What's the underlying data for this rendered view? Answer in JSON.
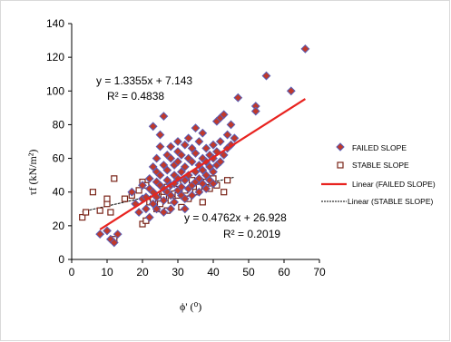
{
  "chart_data": {
    "type": "scatter",
    "title": "",
    "xlabel": "ϕ' (⁰)",
    "ylabel": "τf (kN/m²)",
    "xlim": [
      0,
      70
    ],
    "ylim": [
      0,
      140
    ],
    "x_ticks": [
      "0",
      "10",
      "20",
      "30",
      "40",
      "50",
      "60",
      "70"
    ],
    "y_ticks": [
      "0",
      "20",
      "40",
      "60",
      "80",
      "100",
      "120",
      "140"
    ],
    "grid": false,
    "legend_position": "right",
    "series": [
      {
        "name": "FAILED SLOPE",
        "marker": "diamond",
        "color": "#c0392b",
        "edge_color": "#5b5fb5",
        "points": [
          [
            8,
            15
          ],
          [
            10,
            17
          ],
          [
            11,
            12
          ],
          [
            12,
            10
          ],
          [
            13,
            15
          ],
          [
            17,
            40
          ],
          [
            18,
            33
          ],
          [
            19,
            28
          ],
          [
            20,
            36
          ],
          [
            20,
            44
          ],
          [
            21,
            30
          ],
          [
            21,
            37
          ],
          [
            22,
            42
          ],
          [
            22,
            48
          ],
          [
            22,
            25
          ],
          [
            23,
            55
          ],
          [
            23,
            79
          ],
          [
            23,
            33
          ],
          [
            23,
            40
          ],
          [
            24,
            46
          ],
          [
            24,
            52
          ],
          [
            24,
            60
          ],
          [
            24,
            30
          ],
          [
            24,
            37
          ],
          [
            25,
            44
          ],
          [
            25,
            50
          ],
          [
            25,
            67
          ],
          [
            25,
            74
          ],
          [
            26,
            85
          ],
          [
            26,
            42
          ],
          [
            26,
            56
          ],
          [
            26,
            35
          ],
          [
            26,
            28
          ],
          [
            27,
            47
          ],
          [
            27,
            62
          ],
          [
            27,
            40
          ],
          [
            27,
            53
          ],
          [
            28,
            44
          ],
          [
            28,
            60
          ],
          [
            28,
            67
          ],
          [
            28,
            30
          ],
          [
            28,
            38
          ],
          [
            29,
            50
          ],
          [
            29,
            56
          ],
          [
            29,
            45
          ],
          [
            29,
            34
          ],
          [
            30,
            41
          ],
          [
            30,
            58
          ],
          [
            30,
            64
          ],
          [
            30,
            48
          ],
          [
            30,
            70
          ],
          [
            31,
            38
          ],
          [
            31,
            52
          ],
          [
            31,
            62
          ],
          [
            31,
            43
          ],
          [
            32,
            55
          ],
          [
            32,
            47
          ],
          [
            32,
            36
          ],
          [
            32,
            68
          ],
          [
            32,
            30
          ],
          [
            33,
            60
          ],
          [
            33,
            50
          ],
          [
            33,
            42
          ],
          [
            33,
            72
          ],
          [
            34,
            44
          ],
          [
            34,
            58
          ],
          [
            34,
            66
          ],
          [
            34,
            38
          ],
          [
            35,
            78
          ],
          [
            35,
            52
          ],
          [
            35,
            46
          ],
          [
            35,
            63
          ],
          [
            36,
            56
          ],
          [
            36,
            40
          ],
          [
            36,
            70
          ],
          [
            36,
            48
          ],
          [
            37,
            60
          ],
          [
            37,
            45
          ],
          [
            37,
            75
          ],
          [
            37,
            53
          ],
          [
            38,
            50
          ],
          [
            38,
            66
          ],
          [
            38,
            42
          ],
          [
            38,
            58
          ],
          [
            39,
            62
          ],
          [
            39,
            47
          ],
          [
            39,
            55
          ],
          [
            40,
            68
          ],
          [
            40,
            52
          ],
          [
            40,
            60
          ],
          [
            40,
            45
          ],
          [
            41,
            82
          ],
          [
            41,
            56
          ],
          [
            41,
            64
          ],
          [
            42,
            84
          ],
          [
            42,
            58
          ],
          [
            42,
            70
          ],
          [
            43,
            86
          ],
          [
            43,
            62
          ],
          [
            44,
            66
          ],
          [
            44,
            74
          ],
          [
            45,
            80
          ],
          [
            45,
            68
          ],
          [
            46,
            72
          ],
          [
            47,
            96
          ],
          [
            52,
            91
          ],
          [
            52,
            88
          ],
          [
            55,
            109
          ],
          [
            62,
            100
          ],
          [
            66,
            125
          ]
        ],
        "trendline": {
          "name": "Linear (FAILED SLOPE)",
          "color": "#e8231f",
          "equation": "y = 1.3355x + 7.143",
          "r2": "R² = 0.4838",
          "slope": 1.3355,
          "intercept": 7.143,
          "x_range": [
            8,
            66
          ]
        }
      },
      {
        "name": "STABLE SLOPE",
        "marker": "square",
        "color": "#ffffff",
        "edge_color": "#7a2418",
        "points": [
          [
            3,
            25
          ],
          [
            4,
            28
          ],
          [
            6,
            40
          ],
          [
            8,
            29
          ],
          [
            10,
            33
          ],
          [
            10,
            36
          ],
          [
            11,
            28
          ],
          [
            12,
            48
          ],
          [
            12,
            12
          ],
          [
            15,
            36
          ],
          [
            17,
            38
          ],
          [
            19,
            41
          ],
          [
            20,
            46
          ],
          [
            20,
            21
          ],
          [
            21,
            23
          ],
          [
            21,
            44
          ],
          [
            22,
            34
          ],
          [
            23,
            36
          ],
          [
            24,
            38
          ],
          [
            24,
            30
          ],
          [
            25,
            33
          ],
          [
            26,
            40
          ],
          [
            26,
            37
          ],
          [
            27,
            29
          ],
          [
            27,
            43
          ],
          [
            28,
            35
          ],
          [
            29,
            39
          ],
          [
            30,
            38
          ],
          [
            30,
            45
          ],
          [
            31,
            31
          ],
          [
            32,
            41
          ],
          [
            33,
            36
          ],
          [
            34,
            47
          ],
          [
            35,
            40
          ],
          [
            36,
            43
          ],
          [
            37,
            34
          ],
          [
            38,
            46
          ],
          [
            39,
            42
          ],
          [
            40,
            48
          ],
          [
            41,
            44
          ],
          [
            43,
            40
          ],
          [
            44,
            47
          ]
        ],
        "trendline": {
          "name": "Linear (STABLE SLOPE)",
          "color": "#000000",
          "equation": "y = 0.4762x + 26.928",
          "r2": "R² = 0.2019",
          "slope": 0.4762,
          "intercept": 26.928,
          "x_range": [
            3,
            46
          ]
        }
      }
    ],
    "annotations": [
      "y = 1.3355x + 7.143",
      "R² = 0.4838",
      "y = 0.4762x + 26.928",
      "R² = 0.2019"
    ]
  }
}
